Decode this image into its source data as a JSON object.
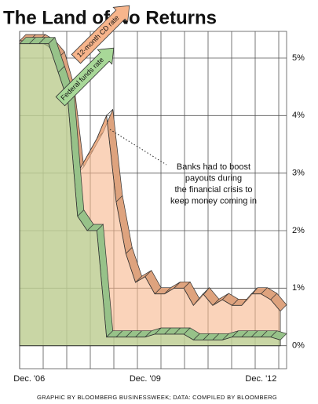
{
  "chart_data": {
    "type": "area",
    "title": "The Land of No Returns",
    "categories": [
      null,
      "Dec. '06",
      null,
      null,
      null,
      null,
      null,
      null,
      null,
      null,
      null,
      null,
      null,
      "Dec. '09",
      null,
      null,
      null,
      null,
      null,
      null,
      null,
      null,
      null,
      null,
      null,
      "Dec. '12",
      null,
      null
    ],
    "series": [
      {
        "name": "12-month CD rate",
        "color": "#f7b58c",
        "values": [
          5.3,
          5.3,
          5.3,
          5.2,
          5.0,
          4.4,
          3.0,
          3.3,
          3.6,
          4.0,
          2.5,
          1.6,
          1.1,
          1.2,
          0.9,
          0.9,
          1.0,
          1.0,
          0.7,
          0.9,
          0.7,
          0.8,
          0.7,
          0.7,
          0.9,
          0.9,
          0.8,
          0.6
        ]
      },
      {
        "name": "Federal funds rate",
        "color": "#a8d898",
        "values": [
          5.25,
          5.25,
          5.25,
          5.25,
          4.75,
          4.25,
          2.25,
          2.0,
          2.0,
          0.15,
          0.15,
          0.15,
          0.15,
          0.15,
          0.2,
          0.2,
          0.2,
          0.2,
          0.1,
          0.1,
          0.1,
          0.1,
          0.15,
          0.15,
          0.15,
          0.15,
          0.15,
          0.1
        ]
      }
    ],
    "ylim": [
      -0.4,
      5.6
    ],
    "yticks": [
      {
        "value": 0,
        "label": "0%"
      },
      {
        "value": 1,
        "label": "1%"
      },
      {
        "value": 2,
        "label": "2%"
      },
      {
        "value": 3,
        "label": "3%"
      },
      {
        "value": 4,
        "label": "4%"
      },
      {
        "value": 5,
        "label": "5%"
      }
    ],
    "grid": true,
    "annotation": [
      "Banks had to boost",
      "payouts during",
      "the financial crisis to",
      "keep money coming in"
    ],
    "source": "GRAPHIC BY BLOOMBERG BUSINESSWEEK; DATA: COMPILED BY BLOOMBERG"
  }
}
